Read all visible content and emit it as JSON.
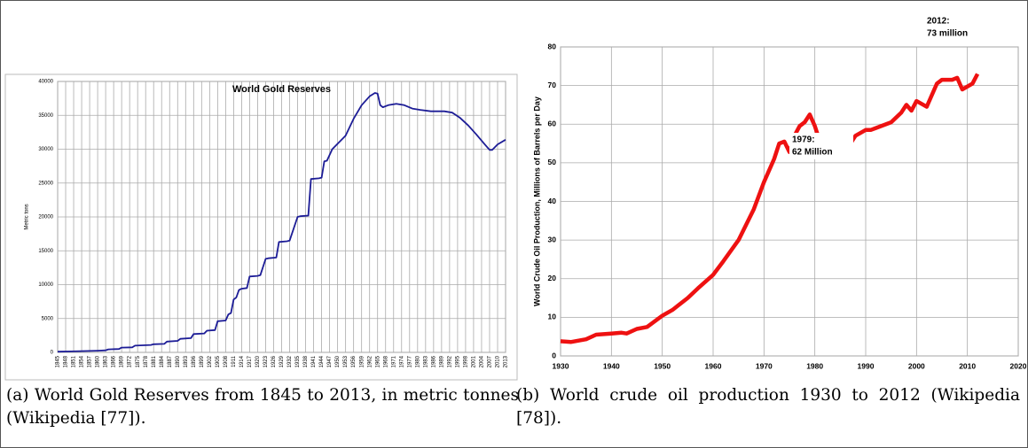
{
  "chart_data": [
    {
      "type": "line",
      "title": "World Gold Reserves",
      "ylabel": "Metric tons",
      "color": "#1c1c96",
      "grid": true,
      "xlim": [
        1845,
        2013
      ],
      "xticks": [
        1845,
        1848,
        1851,
        1854,
        1857,
        1860,
        1863,
        1866,
        1869,
        1872,
        1875,
        1878,
        1881,
        1884,
        1887,
        1890,
        1893,
        1896,
        1899,
        1902,
        1905,
        1908,
        1911,
        1914,
        1917,
        1920,
        1923,
        1926,
        1929,
        1932,
        1935,
        1938,
        1941,
        1944,
        1947,
        1950,
        1953,
        1956,
        1959,
        1962,
        1965,
        1968,
        1971,
        1974,
        1977,
        1980,
        1983,
        1986,
        1989,
        1992,
        1995,
        1998,
        2001,
        2004,
        2007,
        2010,
        2013
      ],
      "ylim": [
        0,
        40000
      ],
      "yticks": [
        0,
        5000,
        10000,
        15000,
        20000,
        25000,
        30000,
        35000,
        40000
      ],
      "x": [
        1845,
        1850,
        1855,
        1860,
        1863,
        1864,
        1868,
        1869,
        1873,
        1874,
        1880,
        1881,
        1885,
        1886,
        1890,
        1891,
        1895,
        1896,
        1900,
        1901,
        1904,
        1905,
        1908,
        1909,
        1910,
        1911,
        1912,
        1913,
        1914,
        1916,
        1917,
        1920,
        1921,
        1923,
        1924,
        1927,
        1928,
        1931,
        1932,
        1935,
        1936,
        1939,
        1940,
        1943,
        1944,
        1945,
        1946,
        1948,
        1950,
        1953,
        1956,
        1959,
        1962,
        1964,
        1965,
        1966,
        1967,
        1969,
        1972,
        1975,
        1978,
        1981,
        1985,
        1990,
        1993,
        1996,
        1999,
        2002,
        2005,
        2007,
        2008,
        2010,
        2013
      ],
      "values": [
        100,
        150,
        200,
        250,
        300,
        450,
        500,
        700,
        750,
        1000,
        1100,
        1200,
        1250,
        1600,
        1700,
        2000,
        2100,
        2700,
        2800,
        3200,
        3300,
        4600,
        4700,
        5600,
        5800,
        7800,
        8100,
        9200,
        9400,
        9500,
        11200,
        11300,
        11400,
        13800,
        13900,
        14000,
        16300,
        16400,
        16500,
        20000,
        20100,
        20200,
        25600,
        25700,
        25800,
        28200,
        28300,
        30000,
        30800,
        32000,
        34500,
        36500,
        37800,
        38300,
        38200,
        36500,
        36200,
        36500,
        36700,
        36500,
        36000,
        35800,
        35600,
        35600,
        35400,
        34600,
        33500,
        32200,
        30800,
        29900,
        29900,
        30700,
        31400
      ]
    },
    {
      "type": "line",
      "ylabel": "World Crude Oil Production, Millions of Barrels per Day",
      "color": "#ee1111",
      "grid": true,
      "xlim": [
        1930,
        2020
      ],
      "xticks": [
        1930,
        1940,
        1950,
        1960,
        1970,
        1980,
        1990,
        2000,
        2010,
        2020
      ],
      "ylim": [
        0,
        80
      ],
      "yticks": [
        0,
        10,
        20,
        30,
        40,
        50,
        60,
        70,
        80
      ],
      "annotations": [
        [
          "1979:",
          "62  Million"
        ],
        [
          "2012:",
          "73 million"
        ]
      ],
      "x": [
        1930,
        1932,
        1935,
        1937,
        1940,
        1942,
        1943,
        1945,
        1947,
        1950,
        1952,
        1955,
        1957,
        1960,
        1962,
        1965,
        1968,
        1970,
        1972,
        1973,
        1974,
        1975,
        1976,
        1977,
        1978,
        1979,
        1980,
        1981,
        1982,
        1983,
        1984,
        1985,
        1986,
        1987,
        1988,
        1990,
        1991,
        1992,
        1995,
        1997,
        1998,
        1999,
        2000,
        2002,
        2004,
        2005,
        2007,
        2008,
        2009,
        2011,
        2012
      ],
      "values": [
        3.8,
        3.6,
        4.3,
        5.5,
        5.8,
        6,
        5.8,
        7,
        7.5,
        10.4,
        11.9,
        15,
        17.5,
        21,
        24.5,
        30,
        38,
        45,
        51,
        55,
        55.5,
        52.8,
        57,
        59.5,
        60.5,
        62.5,
        59.5,
        55.5,
        53,
        52.5,
        53,
        52.5,
        55,
        55,
        57,
        58.5,
        58.5,
        59,
        60.5,
        63,
        65,
        63.5,
        66,
        64.5,
        70.5,
        71.5,
        71.5,
        72,
        69,
        70.5,
        73
      ]
    }
  ],
  "captions": [
    "(a) World Gold Reserves from 1845 to 2013, in metric tonnes (Wikipedia [77]).",
    "(b) World crude oil production 1930 to 2012 (Wikipedia [78])."
  ]
}
